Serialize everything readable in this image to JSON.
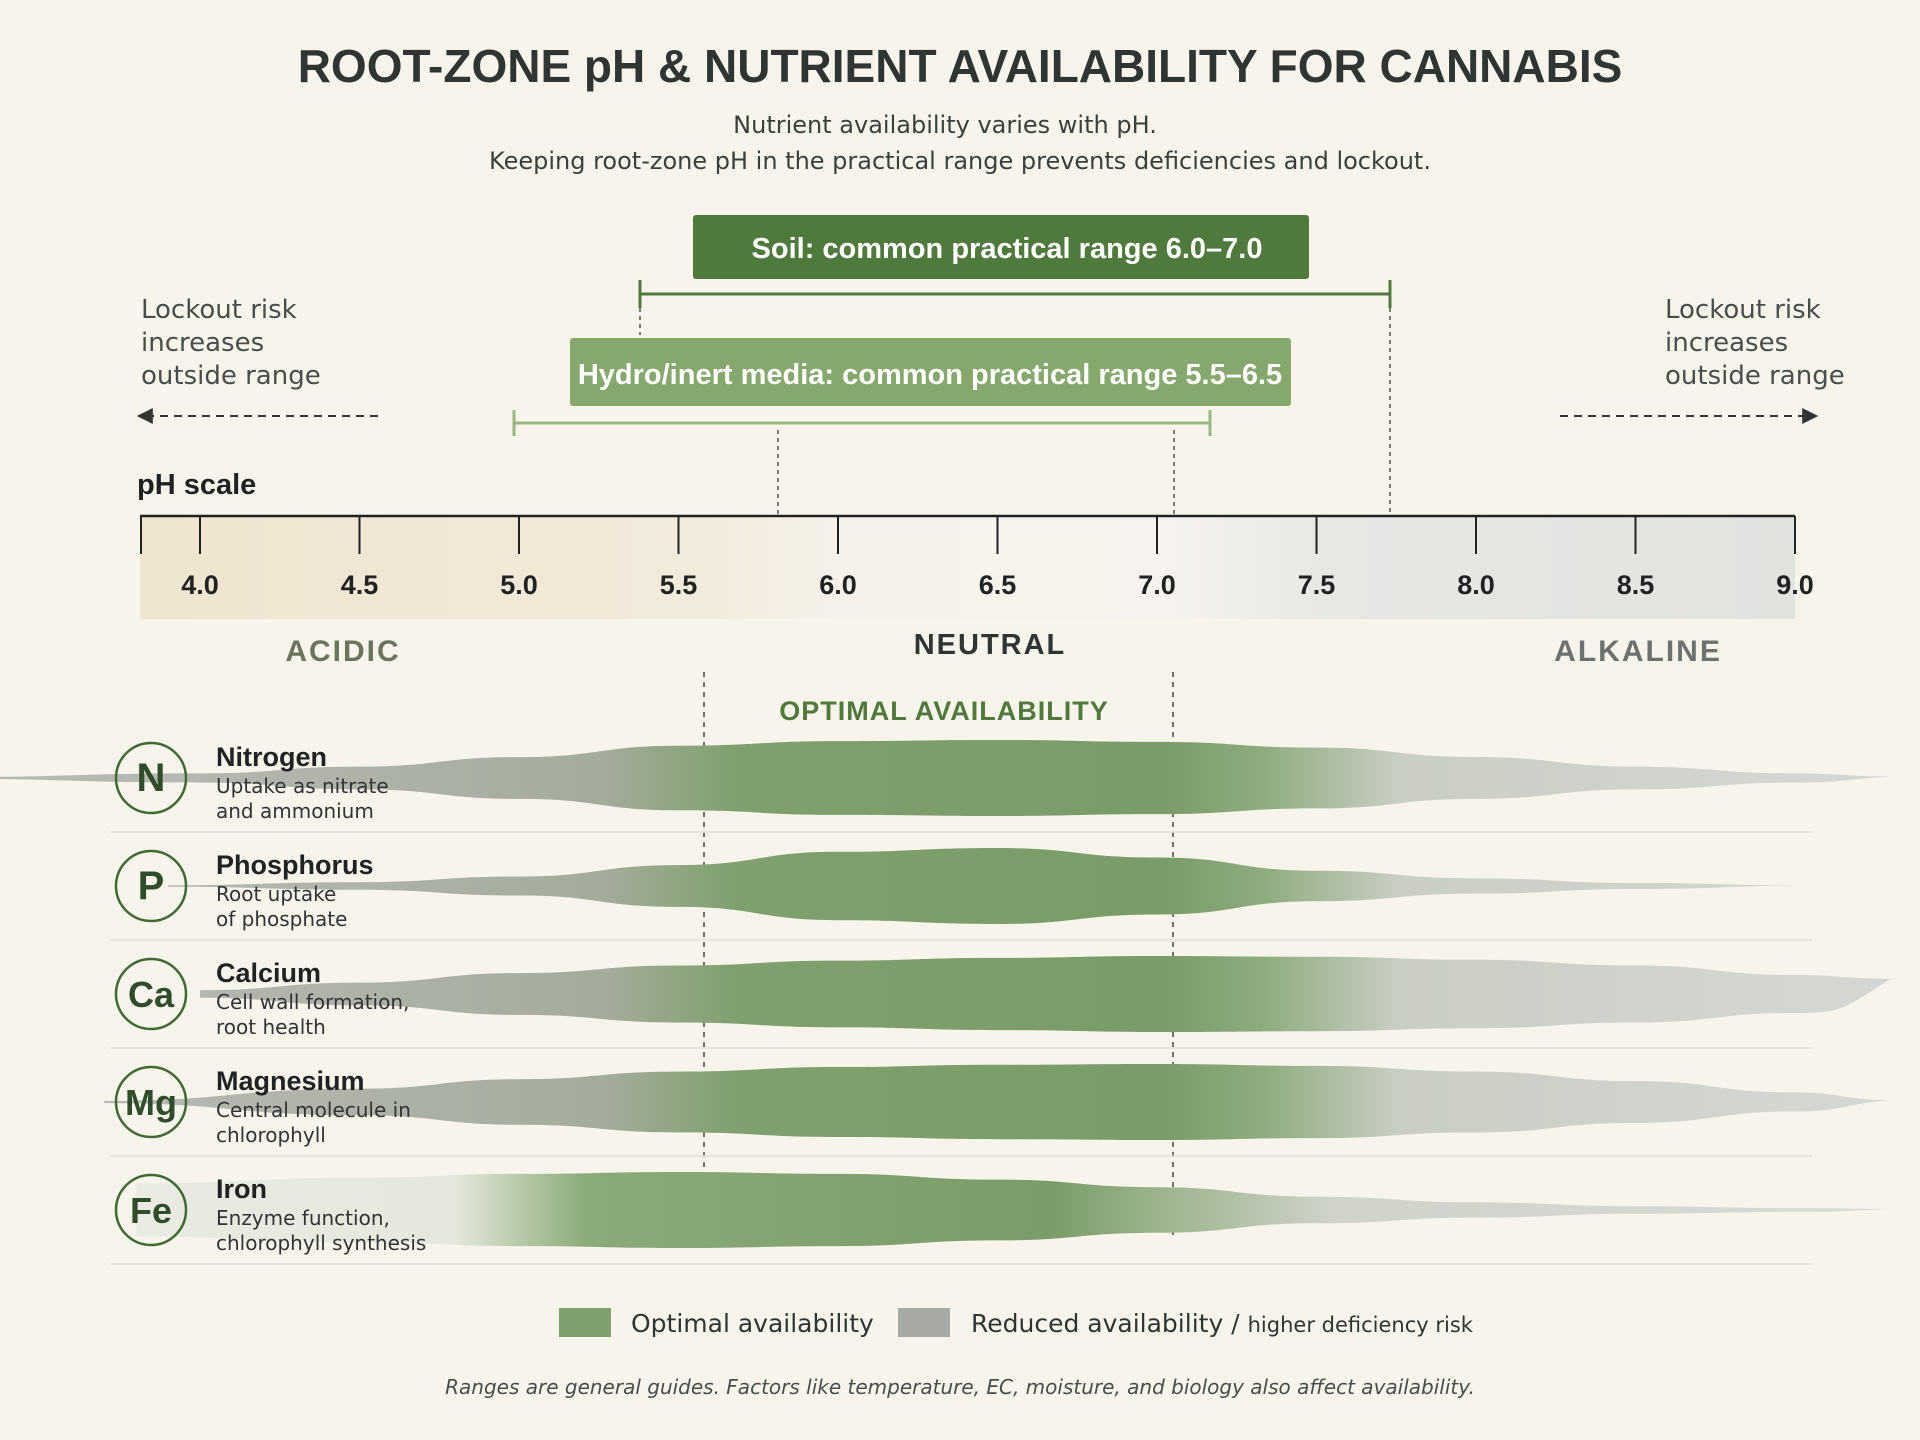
{
  "header": {
    "title": "ROOT-ZONE pH & NUTRIENT AVAILABILITY FOR CANNABIS",
    "subtitle_line1": "Nutrient availability varies with pH.",
    "subtitle_line2": "Keeping root-zone pH in the practical range prevents deficiencies and lockout."
  },
  "ranges": {
    "soil": {
      "label": "Soil: common practical range 6.0–7.0",
      "min": 6.0,
      "max": 7.0,
      "color": "#4f7a3c"
    },
    "hydro": {
      "label": "Hydro/inert media: common practical range 5.5–6.5",
      "min": 5.5,
      "max": 6.5,
      "color": "#86a86c"
    }
  },
  "lockout": {
    "left_line1": "Lockout risk",
    "left_line2": "increases",
    "left_line3": "outside range",
    "right_line1": "Lockout risk",
    "right_line2": "increases",
    "right_line3": "outside range"
  },
  "scale": {
    "label": "pH scale",
    "min": 4.0,
    "max": 9.0,
    "ticks": [
      "4.0",
      "4.5",
      "5.0",
      "5.5",
      "6.0",
      "6.5",
      "7.0",
      "7.5",
      "8.0",
      "8.5",
      "9.0"
    ],
    "acidic": "ACIDIC",
    "neutral": "NEUTRAL",
    "alkaline": "ALKALINE"
  },
  "optimal_label": "OPTIMAL AVAILABILITY",
  "nutrients": [
    {
      "symbol": "N",
      "name": "Nitrogen",
      "desc1": "Uptake as nitrate",
      "desc2": "and ammonium",
      "profile": [
        [
          3.2,
          0.02
        ],
        [
          4.0,
          0.12
        ],
        [
          4.5,
          0.3
        ],
        [
          5.0,
          0.55
        ],
        [
          5.5,
          0.85
        ],
        [
          6.0,
          0.97
        ],
        [
          6.5,
          1.0
        ],
        [
          7.0,
          0.95
        ],
        [
          7.5,
          0.8
        ],
        [
          8.0,
          0.55
        ],
        [
          8.5,
          0.3
        ],
        [
          9.0,
          0.12
        ],
        [
          9.3,
          0.04
        ]
      ]
    },
    {
      "symbol": "P",
      "name": "Phosphorus",
      "desc1": "Root uptake",
      "desc2": "of phosphate",
      "profile": [
        [
          3.9,
          0.02
        ],
        [
          4.5,
          0.1
        ],
        [
          5.0,
          0.25
        ],
        [
          5.5,
          0.55
        ],
        [
          6.0,
          0.9
        ],
        [
          6.5,
          1.0
        ],
        [
          7.0,
          0.75
        ],
        [
          7.5,
          0.4
        ],
        [
          8.0,
          0.2
        ],
        [
          8.5,
          0.08
        ],
        [
          9.0,
          0.02
        ]
      ]
    },
    {
      "symbol": "Ca",
      "name": "Calcium",
      "desc1": "Cell wall formation,",
      "desc2": "root health",
      "profile": [
        [
          4.0,
          0.1
        ],
        [
          4.5,
          0.3
        ],
        [
          5.0,
          0.55
        ],
        [
          5.5,
          0.75
        ],
        [
          6.0,
          0.88
        ],
        [
          6.5,
          0.95
        ],
        [
          7.0,
          1.0
        ],
        [
          7.5,
          0.98
        ],
        [
          8.0,
          0.9
        ],
        [
          8.5,
          0.75
        ],
        [
          9.0,
          0.5
        ],
        [
          9.3,
          0.4
        ]
      ]
    },
    {
      "symbol": "Mg",
      "name": "Magnesium",
      "desc1": "Central molecule in",
      "desc2": "chlorophyll",
      "profile": [
        [
          3.7,
          0.03
        ],
        [
          4.5,
          0.35
        ],
        [
          5.0,
          0.6
        ],
        [
          5.5,
          0.8
        ],
        [
          6.0,
          0.92
        ],
        [
          6.5,
          0.98
        ],
        [
          7.0,
          1.0
        ],
        [
          7.5,
          0.95
        ],
        [
          8.0,
          0.8
        ],
        [
          8.5,
          0.55
        ],
        [
          9.0,
          0.25
        ],
        [
          9.3,
          0.05
        ]
      ]
    },
    {
      "symbol": "Fe",
      "name": "Iron",
      "desc1": "Enzyme function,",
      "desc2": "chlorophyll synthesis",
      "profile": [
        [
          3.8,
          0.7
        ],
        [
          4.5,
          0.85
        ],
        [
          5.0,
          0.95
        ],
        [
          5.5,
          1.0
        ],
        [
          6.0,
          0.95
        ],
        [
          6.5,
          0.8
        ],
        [
          7.0,
          0.6
        ],
        [
          7.5,
          0.35
        ],
        [
          8.0,
          0.2
        ],
        [
          8.5,
          0.1
        ],
        [
          9.0,
          0.05
        ],
        [
          9.3,
          0.03
        ]
      ]
    }
  ],
  "legend": {
    "optimal": "Optimal availability",
    "reduced": "Reduced availability /",
    "reduced_small": "higher deficiency risk"
  },
  "footnote": "Ranges are general guides. Factors like temperature, EC, moisture, and biology also affect availability.",
  "colors": {
    "background": "#f7f4ec",
    "dark_green": "#4f7a3c",
    "light_green": "#86a86c",
    "band_green": "#7fa06e",
    "band_grey": "#b8b8b4",
    "text": "#2a2e2a"
  }
}
